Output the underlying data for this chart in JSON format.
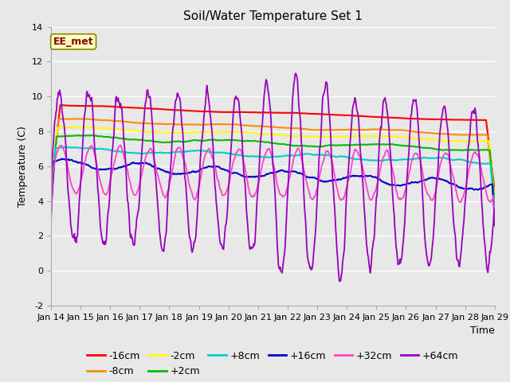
{
  "title": "Soil/Water Temperature Set 1",
  "xlabel": "Time",
  "ylabel": "Temperature (C)",
  "annotation": "EE_met",
  "ylim": [
    -2,
    14
  ],
  "xlim": [
    0,
    15
  ],
  "xtick_labels": [
    "Jan 14",
    "Jan 15",
    "Jan 16",
    "Jan 17",
    "Jan 18",
    "Jan 19",
    "Jan 20",
    "Jan 21",
    "Jan 22",
    "Jan 23",
    "Jan 24",
    "Jan 25",
    "Jan 26",
    "Jan 27",
    "Jan 28",
    "Jan 29"
  ],
  "ytick_vals": [
    -2,
    0,
    2,
    4,
    6,
    8,
    10,
    12,
    14
  ],
  "series": [
    {
      "label": "-16cm",
      "color": "#ff0000"
    },
    {
      "label": "-8cm",
      "color": "#ff8c00"
    },
    {
      "label": "-2cm",
      "color": "#ffff00"
    },
    {
      "label": "+2cm",
      "color": "#00bb00"
    },
    {
      "label": "+8cm",
      "color": "#00cccc"
    },
    {
      "label": "+16cm",
      "color": "#0000cc"
    },
    {
      "label": "+32cm",
      "color": "#ff44cc"
    },
    {
      "label": "+64cm",
      "color": "#9900bb"
    }
  ],
  "bg_color": "#e8e8e8",
  "fig_bg_color": "#e8e8e8",
  "grid_color": "#ffffff",
  "title_fontsize": 11,
  "legend_fontsize": 9,
  "axis_label_fontsize": 9,
  "tick_fontsize": 8,
  "figsize": [
    6.4,
    4.8
  ],
  "dpi": 100
}
